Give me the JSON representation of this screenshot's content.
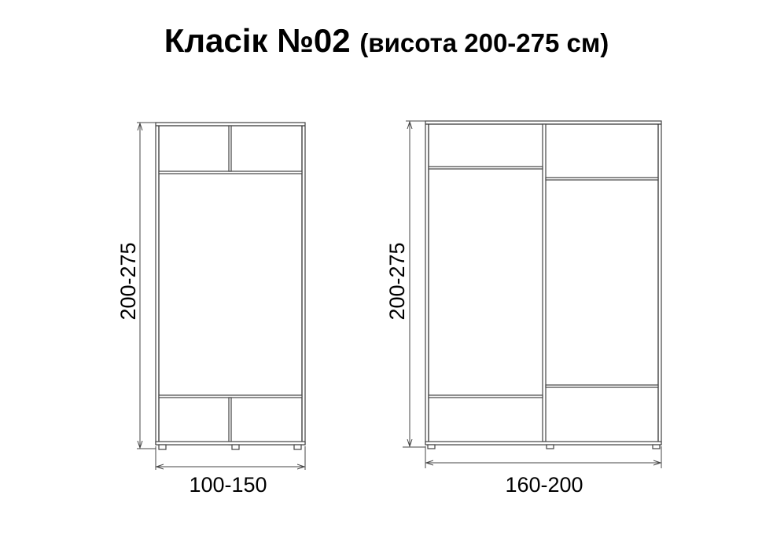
{
  "title": {
    "main": "Класік №02",
    "sub": "(висота 200-275 см)"
  },
  "wardrobes": [
    {
      "height_label": "200-275",
      "width_label": "100-150"
    },
    {
      "height_label": "200-275",
      "width_label": "160-200"
    }
  ]
}
